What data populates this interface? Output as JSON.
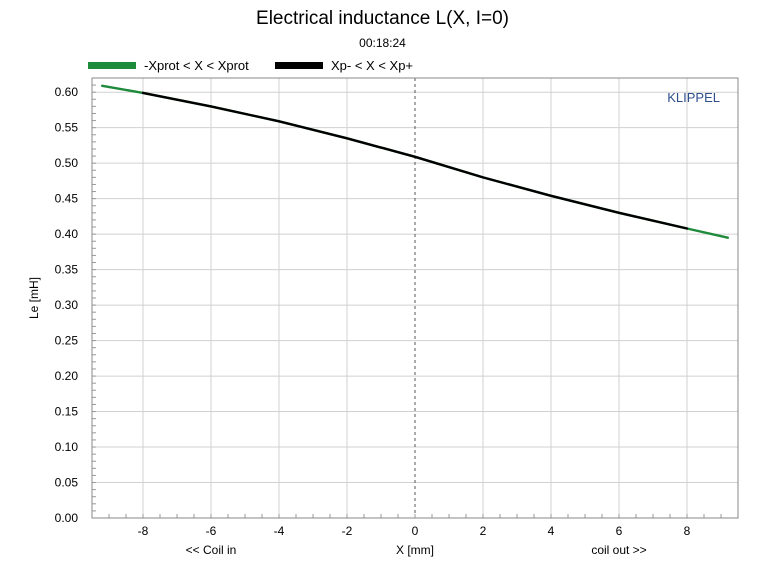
{
  "chart_data": {
    "type": "line",
    "title": "Electrical inductance L(X, I=0)",
    "subtitle": "00:18:24",
    "xlabel": "X [mm]",
    "ylabel": "Le [mH]",
    "xlabel_left": "<< Coil in",
    "xlabel_right": "coil out >>",
    "watermark": "KLIPPEL",
    "xlim": [
      -9.5,
      9.5
    ],
    "ylim": [
      0.0,
      0.62
    ],
    "xticks": [
      -8,
      -6,
      -4,
      -2,
      0,
      2,
      4,
      6,
      8
    ],
    "yticks": [
      "0.00",
      "0.05",
      "0.10",
      "0.15",
      "0.20",
      "0.25",
      "0.30",
      "0.35",
      "0.40",
      "0.45",
      "0.50",
      "0.55",
      "0.60"
    ],
    "grid": true,
    "legend_position": "top",
    "series": [
      {
        "name": "-Xprot < X < Xprot",
        "color": "#1e8a3c",
        "x": [
          -9.2,
          -8,
          -6,
          -4,
          -2,
          0,
          2,
          4,
          6,
          8,
          9.2
        ],
        "y": [
          0.609,
          0.599,
          0.58,
          0.559,
          0.535,
          0.509,
          0.48,
          0.454,
          0.43,
          0.408,
          0.395
        ]
      },
      {
        "name": "Xp- < X < Xp+",
        "color": "#000000",
        "x": [
          -8,
          -6,
          -4,
          -2,
          0,
          2,
          4,
          6,
          8
        ],
        "y": [
          0.599,
          0.58,
          0.559,
          0.535,
          0.509,
          0.48,
          0.454,
          0.43,
          0.408
        ]
      }
    ]
  }
}
